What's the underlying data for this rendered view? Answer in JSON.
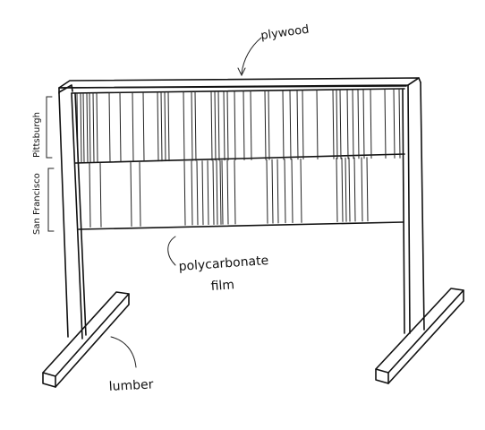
{
  "labels": {
    "plywood": "plywood",
    "polycarbonate_line1": "polycarbonate",
    "polycarbonate_line2": "film",
    "lumber": "lumber",
    "pittsburgh": "Pittsburgh",
    "san_francisco": "San Francisco"
  }
}
